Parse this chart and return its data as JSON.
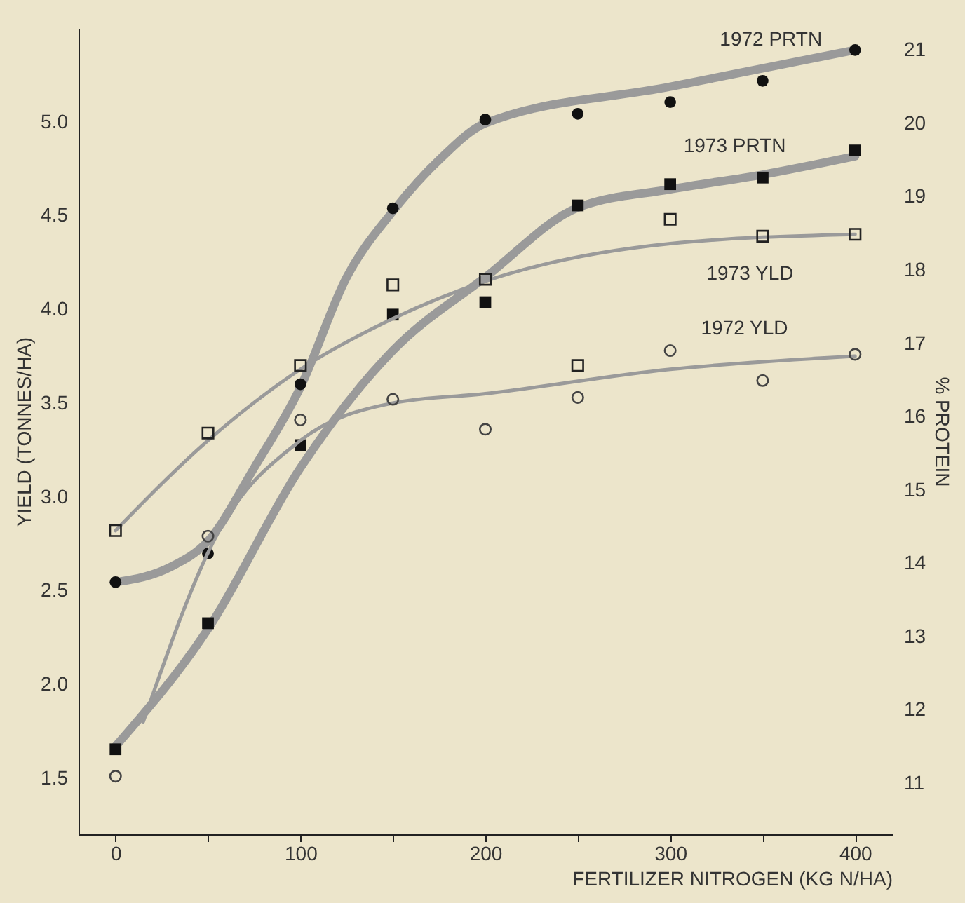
{
  "chart_data": {
    "type": "scatter",
    "xlabel": "FERTILIZER NITROGEN (KG N/HA)",
    "ylabel": "YIELD (TONNES/HA)",
    "y2label": "% PROTEIN",
    "x": [
      0,
      50,
      100,
      150,
      200,
      250,
      300,
      350,
      400
    ],
    "series": [
      {
        "name": "1972 PRTN",
        "marker": "circle",
        "color": "#111111",
        "axis": "y2",
        "values": [
          13.74,
          14.13,
          16.44,
          18.84,
          20.05,
          20.13,
          20.29,
          20.58,
          21.0
        ]
      },
      {
        "name": "1973 PRTN",
        "marker": "square",
        "color": "#111111",
        "axis": "y2",
        "values": [
          11.46,
          13.18,
          15.61,
          17.39,
          17.56,
          18.88,
          19.17,
          19.26,
          19.63
        ]
      },
      {
        "name": "1973 YLD",
        "marker": "square",
        "color": "#222222",
        "values": [
          2.82,
          3.34,
          3.7,
          4.13,
          4.16,
          3.7,
          4.48,
          4.39,
          4.4
        ]
      },
      {
        "name": "1972 YLD",
        "marker": "circle",
        "color": "#444444",
        "values": [
          1.51,
          2.79,
          3.41,
          3.52,
          3.36,
          3.53,
          3.78,
          3.62,
          3.76
        ]
      },
      {
        "type": "line",
        "color": "#9a9a9a",
        "axis": "y2",
        "x": [
          0,
          30,
          50,
          75,
          100,
          125,
          150,
          175,
          200,
          300,
          400
        ],
        "values": [
          13.74,
          13.95,
          14.3,
          15.3,
          16.4,
          17.9,
          18.8,
          19.5,
          20.0,
          20.5,
          21.0
        ]
      },
      {
        "type": "line",
        "color": "#9a9a9a",
        "axis": "y2",
        "x": [
          0,
          50,
          100,
          150,
          200,
          250,
          300,
          350,
          400
        ],
        "values": [
          11.5,
          13.1,
          15.3,
          16.9,
          17.9,
          18.85,
          19.1,
          19.3,
          19.55
        ]
      },
      {
        "type": "line",
        "color": "#9a9a9a",
        "x": [
          0,
          50,
          100,
          150,
          200,
          300,
          400
        ],
        "values": [
          2.82,
          3.3,
          3.68,
          3.95,
          4.15,
          4.35,
          4.4
        ]
      },
      {
        "type": "line",
        "color": "#9a9a9a",
        "x": [
          15,
          55,
          100,
          150,
          200,
          300,
          400
        ],
        "values": [
          1.8,
          2.8,
          3.3,
          3.5,
          3.55,
          3.68,
          3.75
        ]
      }
    ],
    "xlim": [
      -20,
      420
    ],
    "xticks": [
      0,
      {
        "value": 50,
        "label": null
      },
      100,
      {
        "value": 150,
        "label": null
      },
      200,
      {
        "value": 250,
        "label": null
      },
      300,
      {
        "value": 350,
        "label": null
      },
      400
    ],
    "ylim": [
      1.2,
      5.5
    ],
    "yticks": [
      {
        "value": 1.5,
        "label": "1.5"
      },
      {
        "value": 2,
        "label": "2.0"
      },
      {
        "value": 2.5,
        "label": "2.5"
      },
      {
        "value": 3,
        "label": "3.0"
      },
      {
        "value": 3.5,
        "label": "3.5"
      },
      {
        "value": 4,
        "label": "4.0"
      },
      {
        "value": 4.5,
        "label": "4.5"
      },
      {
        "value": 5,
        "label": "5.0"
      }
    ],
    "y2lim": [
      10.3,
      21.3
    ],
    "y2ticks": [
      11,
      12,
      13,
      14,
      15,
      16,
      17,
      18,
      19,
      20,
      21
    ],
    "grid": false
  }
}
